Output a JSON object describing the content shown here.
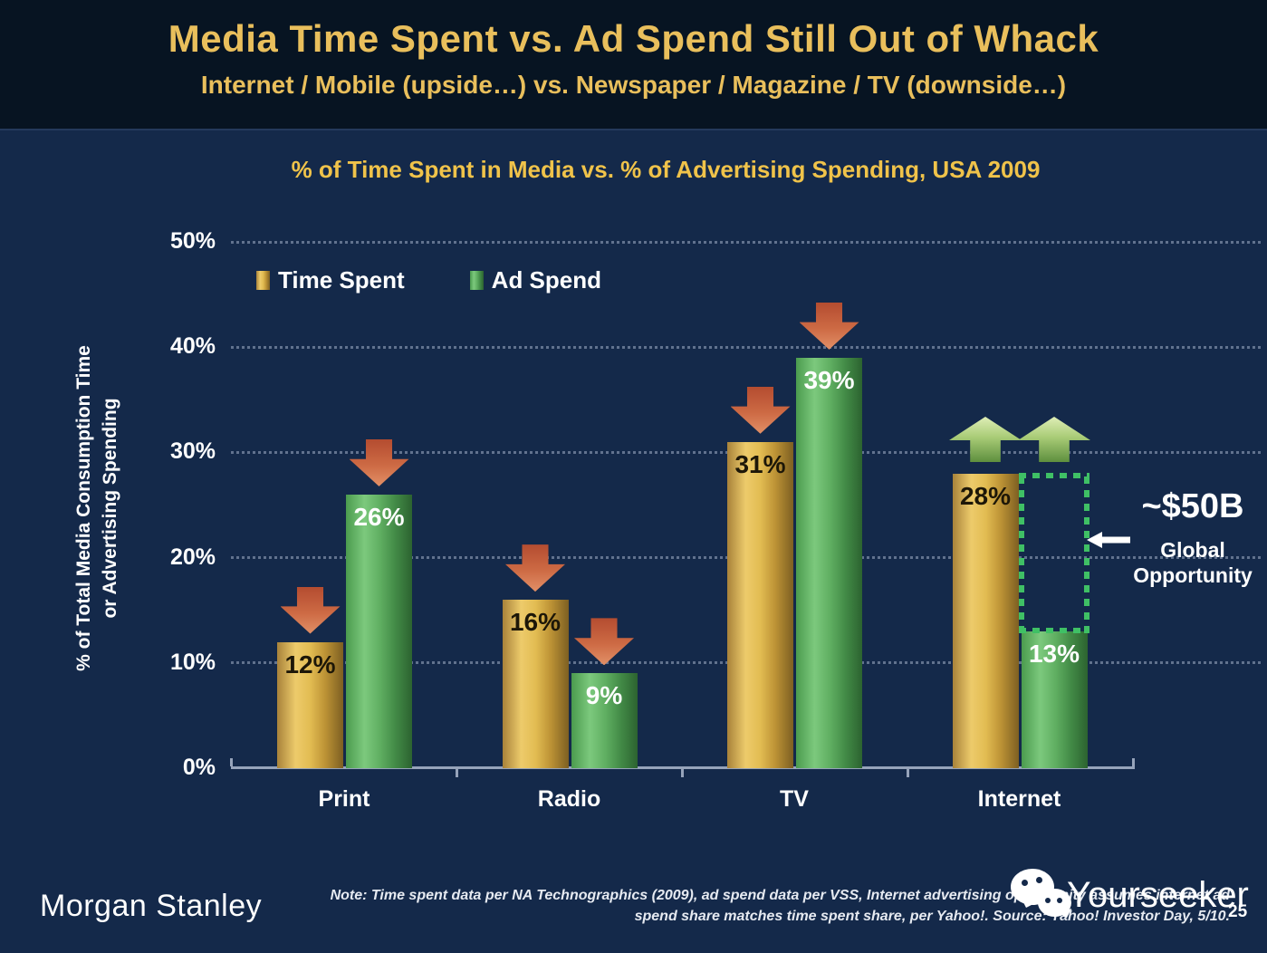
{
  "slide": {
    "title": "Media Time Spent vs. Ad Spend Still Out of Whack",
    "subtitle": "Internet / Mobile (upside…) vs. Newspaper / Magazine / TV (downside…)",
    "page_number": "25"
  },
  "chart_data": {
    "type": "bar",
    "title": "% of Time Spent in Media vs. % of Advertising Spending, USA 2009",
    "ylabel": "% of Total Media Consumption Time\nor Advertising Spending",
    "categories": [
      "Print",
      "Radio",
      "TV",
      "Internet"
    ],
    "series": [
      {
        "name": "Time Spent",
        "color": "#D9AE4B",
        "values": [
          12,
          16,
          31,
          28
        ],
        "value_labels": [
          "12%",
          "16%",
          "31%",
          "28%"
        ],
        "arrows": [
          "down",
          "down",
          "down",
          "up"
        ]
      },
      {
        "name": "Ad Spend",
        "color": "#55A757",
        "values": [
          26,
          9,
          39,
          13
        ],
        "value_labels": [
          "26%",
          "9%",
          "39%",
          "13%"
        ],
        "arrows": [
          "down",
          "down",
          "down",
          "up"
        ]
      }
    ],
    "ylim": [
      0,
      50
    ],
    "yticks": [
      "0%",
      "10%",
      "20%",
      "30%",
      "40%",
      "50%"
    ],
    "grid": "horizontal dotted lines every 10%",
    "legend_position": "top-left inside plot",
    "annotation": {
      "value": "~$50B",
      "label_line1": "Global",
      "label_line2": "Opportunity",
      "target": "dashed green box over Internet Ad Spend bar spanning 13% to 28%",
      "down_arrow_color": "#CD6A44",
      "up_arrow_color": "#A9CC77",
      "box_color": "#3FC065"
    }
  },
  "footer": {
    "brand": "Morgan Stanley",
    "note_line1": "Note: Time spent data per NA Technographics (2009), ad spend data per VSS, Internet advertising opportunity assumes internet ad",
    "note_line2": "spend share matches time spent share, per Yahoo!. Source: Yahoo! Investor Day, 5/10.",
    "watermark": "Yourseeker"
  }
}
